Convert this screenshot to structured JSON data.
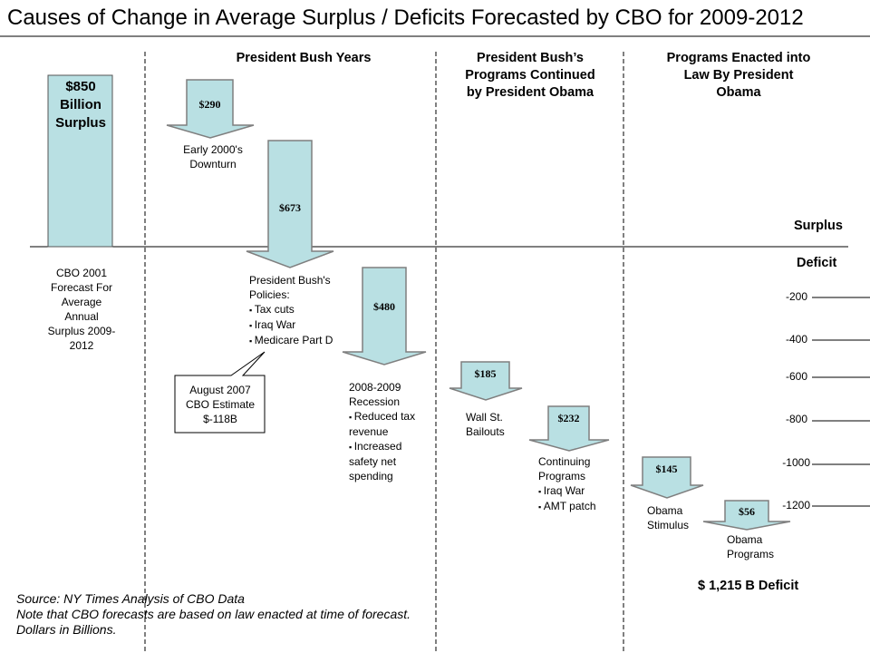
{
  "title": "Causes of Change in Average Surplus / Deficits Forecasted by CBO for 2009-2012",
  "sections": [
    "President Bush Years",
    "President Bush’s Programs Continued by President Obama",
    "Programs Enacted into Law By President Obama"
  ],
  "start_bar": {
    "value_label": "$850 Billion Surplus",
    "value": 850,
    "caption": "CBO 2001 Forecast For Average Annual Surplus 2009-2012"
  },
  "changes": [
    {
      "value": 290,
      "label": "$290",
      "caption": "Early 2000's Downturn",
      "bullets": []
    },
    {
      "value": 673,
      "label": "$673",
      "caption": "President Bush's Policies:",
      "bullets": [
        "Tax cuts",
        "Iraq War",
        "Medicare Part D"
      ]
    },
    {
      "value": 480,
      "label": "$480",
      "caption": "2008-2009 Recession",
      "bullets": [
        "Reduced tax revenue",
        "Increased safety net spending"
      ]
    },
    {
      "value": 185,
      "label": "$185",
      "caption": "Wall St. Bailouts",
      "bullets": []
    },
    {
      "value": 232,
      "label": "$232",
      "caption": "Continuing Programs",
      "bullets": [
        "Iraq War",
        "AMT patch"
      ]
    },
    {
      "value": 145,
      "label": "$145",
      "caption": "Obama Stimulus",
      "bullets": []
    },
    {
      "value": 56,
      "label": "$56",
      "caption": "Obama Programs",
      "bullets": []
    }
  ],
  "callout": "August 2007 CBO Estimate $-118B",
  "axis": {
    "surplus_label": "Surplus",
    "deficit_label": "Deficit",
    "ticks": [
      "-200",
      "-400",
      "-600",
      "-800",
      "-1000",
      "-1200"
    ]
  },
  "final": "$ 1,215 B Deficit",
  "source_lines": [
    "Source:  NY Times Analysis of CBO Data",
    "Note that CBO forecasts are based on law enacted at time of forecast.",
    "Dollars in Billions."
  ],
  "colors": {
    "fill": "#b9e0e3",
    "stroke": "#7f7f7f"
  }
}
